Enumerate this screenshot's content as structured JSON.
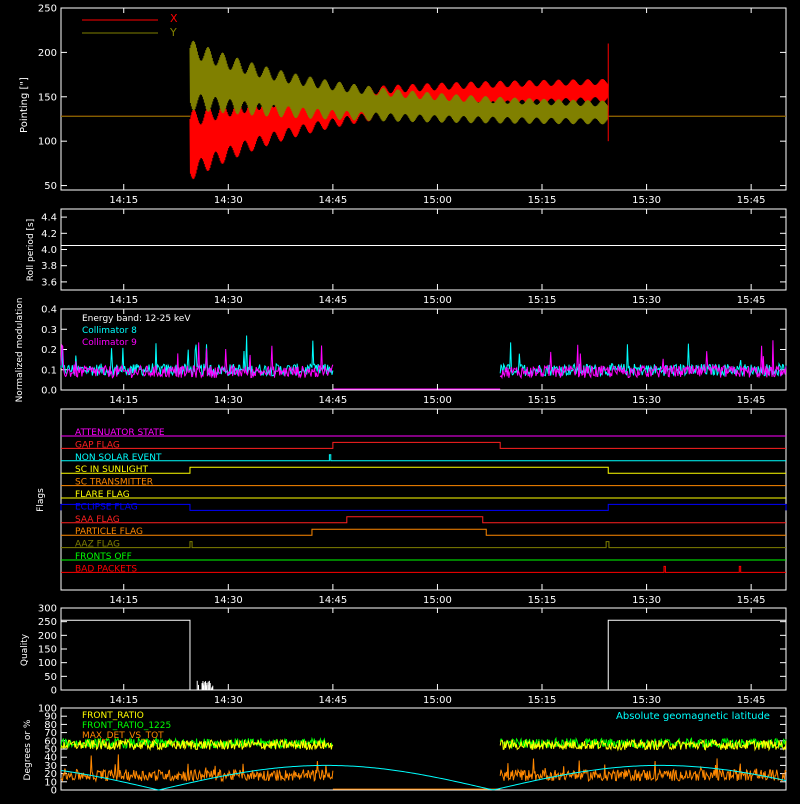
{
  "time_ticks": [
    "14:15",
    "14:30",
    "14:45",
    "15:00",
    "15:15",
    "15:30",
    "15:45"
  ],
  "time_ticks_min": [
    855,
    870,
    885,
    900,
    915,
    930,
    945
  ],
  "time_range": [
    846,
    950
  ],
  "panel_lower_ticks": [
    "14:15",
    "14:30",
    "14:45",
    "15:00",
    "15:15",
    "15:30",
    "15:45"
  ],
  "colors": {
    "x": "#ff0000",
    "y": "#808000",
    "white": "#ffffff",
    "cyan": "#00ffff",
    "magenta": "#ff00ff",
    "green": "#00ff00",
    "orange": "#ff8800",
    "yellow": "#ffff00",
    "blue": "#0000ff"
  },
  "chart_data": [
    {
      "id": "pointing",
      "type": "line",
      "ylabel": "Pointing [\"]",
      "ylim": [
        45,
        250
      ],
      "yticks": [
        50,
        100,
        150,
        200,
        250
      ],
      "legend": [
        "X",
        "Y"
      ],
      "series": [
        {
          "name": "X",
          "segments": [
            {
              "x": [
                846,
                864.5
              ],
              "y": [
                128,
                128
              ]
            },
            {
              "x": [
                864.5,
                924.5
              ],
              "y_center": [
                95,
                160
              ],
              "y_amp": [
                40,
                12
              ]
            },
            {
              "x": [
                924.5,
                950
              ],
              "y": [
                128,
                128
              ]
            }
          ]
        },
        {
          "name": "Y",
          "segments": [
            {
              "x": [
                846,
                864.5
              ],
              "y": [
                128,
                128
              ]
            },
            {
              "x": [
                864.5,
                924.5
              ],
              "y_center": [
                175,
                130
              ],
              "y_amp": [
                40,
                12
              ]
            },
            {
              "x": [
                924.5,
                950
              ],
              "y": [
                128,
                128
              ]
            }
          ]
        }
      ]
    },
    {
      "id": "roll",
      "type": "line",
      "ylabel": "Roll period [s]",
      "ylim": [
        3.5,
        4.5
      ],
      "yticks": [
        3.6,
        3.8,
        4.0,
        4.2,
        4.4
      ],
      "series": [
        {
          "name": "",
          "x": [
            846,
            950
          ],
          "y": [
            4.05,
            4.05
          ]
        }
      ]
    },
    {
      "id": "modulation",
      "type": "line",
      "ylabel": "Normalized modulation",
      "ylim": [
        0,
        0.4
      ],
      "yticks": [
        0.0,
        0.1,
        0.2,
        0.3,
        0.4
      ],
      "annotations": [
        "Energy band: 12-25 keV",
        "Collimator 8",
        "Collimator 9"
      ],
      "active_intervals": [
        [
          846,
          885
        ],
        [
          909,
          950
        ]
      ],
      "series": [
        {
          "name": "Collimator 8",
          "level": 0.1
        },
        {
          "name": "Collimator 9",
          "level": 0.09
        }
      ]
    },
    {
      "id": "flags",
      "type": "line",
      "ylabel": "Flags",
      "series": [
        {
          "name": "ATTENUATOR STATE",
          "color": "#ff00ff",
          "on": []
        },
        {
          "name": "GAP FLAG",
          "color": "#ff2020",
          "on": [
            [
              885,
              909
            ]
          ]
        },
        {
          "name": "NON SOLAR EVENT",
          "color": "#00ffff",
          "on": [
            [
              884.5,
              884.7
            ]
          ]
        },
        {
          "name": "SC IN SUNLIGHT",
          "color": "#ffff00",
          "on": [
            [
              864.5,
              924.5
            ]
          ]
        },
        {
          "name": "SC TRANSMITTER",
          "color": "#ff8800",
          "on": []
        },
        {
          "name": "FLARE FLAG",
          "color": "#ffff00",
          "on": []
        },
        {
          "name": "ECLIPSE FLAG",
          "color": "#0000ff",
          "on": [
            [
              846,
              864.5
            ],
            [
              924.5,
              950
            ]
          ]
        },
        {
          "name": "SAA FLAG",
          "color": "#ff2020",
          "on": [
            [
              887,
              906.5
            ]
          ]
        },
        {
          "name": "PARTICLE FLAG",
          "color": "#ff8800",
          "on": [
            [
              882,
              907
            ]
          ]
        },
        {
          "name": "AAZ FLAG",
          "color": "#808000",
          "on": [
            [
              864.5,
              864.8
            ],
            [
              924.2,
              924.6
            ]
          ]
        },
        {
          "name": "FRONTS OFF",
          "color": "#00ff00",
          "on": []
        },
        {
          "name": "BAD PACKETS",
          "color": "#ff0000",
          "on": [
            [
              932.5,
              932.7
            ],
            [
              943.3,
              943.5
            ]
          ]
        }
      ]
    },
    {
      "id": "quality",
      "type": "line",
      "ylabel": "Quality",
      "ylim": [
        0,
        300
      ],
      "yticks": [
        0,
        50,
        100,
        150,
        200,
        250,
        300
      ],
      "series": [
        {
          "name": "",
          "x": [
            846,
            864.5,
            864.5,
            924.5,
            924.5,
            950
          ],
          "y": [
            255,
            255,
            0,
            0,
            255,
            255
          ]
        }
      ]
    },
    {
      "id": "ratios",
      "type": "line",
      "ylabel": "Degrees or %",
      "ylim": [
        0,
        100
      ],
      "yticks": [
        0,
        10,
        20,
        30,
        40,
        50,
        60,
        70,
        80,
        90,
        100
      ],
      "legend": [
        "FRONT_RATIO",
        "FRONT_RATIO_1225",
        "MAX_DET_VS_TOT",
        "Absolute geomagnetic latitude"
      ],
      "active_intervals": [
        [
          846,
          885
        ],
        [
          909,
          950
        ]
      ],
      "series": [
        {
          "name": "FRONT_RATIO",
          "level": 55
        },
        {
          "name": "FRONT_RATIO_1225",
          "level": 57
        },
        {
          "name": "MAX_DET_VS_TOT",
          "level": 18
        },
        {
          "name": "Absolute geomagnetic latitude",
          "level": 15
        }
      ]
    }
  ]
}
